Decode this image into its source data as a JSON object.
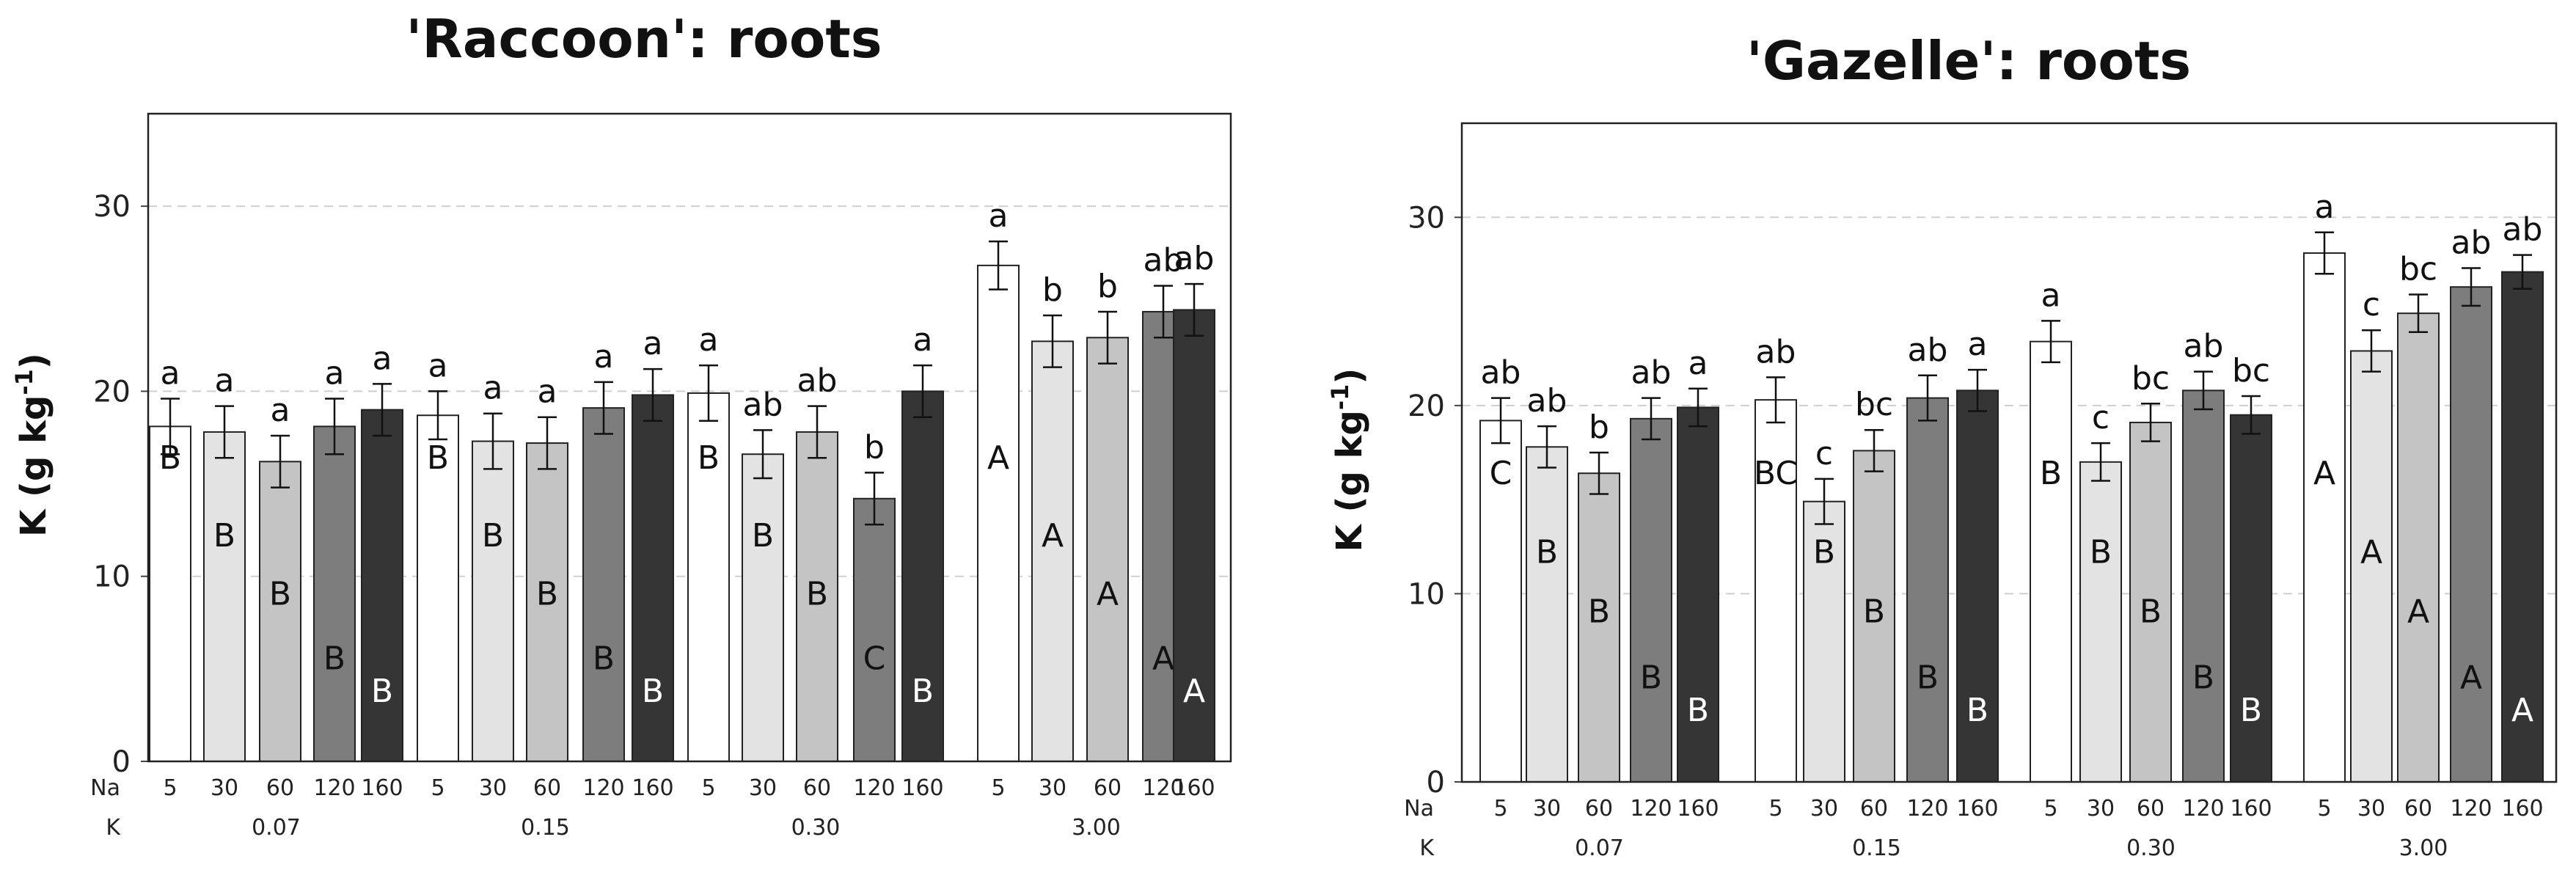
{
  "chart_data": [
    {
      "type": "bar",
      "title": "'Raccoon': roots",
      "ylabel": "K (g kg",
      "ylabel_sup": "-1",
      "ylabel_close": ")",
      "ylim": [
        0,
        35
      ],
      "yticks": [
        "0",
        "10",
        "20",
        "30"
      ],
      "row_labels": {
        "na": "Na",
        "k": "K"
      },
      "na_levels": [
        "5",
        "30",
        "60",
        "120",
        "160"
      ],
      "k_groups": [
        "0.07",
        "0.15",
        "0.30",
        "3.00"
      ],
      "bar_colors": [
        "#ffffff",
        "#e3e3e3",
        "#c4c4c4",
        "#7d7d7d",
        "#353535"
      ],
      "values": [
        [
          18.1,
          17.8,
          16.2,
          18.1,
          19.0
        ],
        [
          18.7,
          17.3,
          17.2,
          19.1,
          19.8
        ],
        [
          19.9,
          16.6,
          17.8,
          14.2,
          20.0
        ],
        [
          26.8,
          22.7,
          22.9,
          24.3,
          24.4
        ]
      ],
      "errors": [
        [
          1.5,
          1.4,
          1.4,
          1.5,
          1.4
        ],
        [
          1.3,
          1.5,
          1.4,
          1.4,
          1.4
        ],
        [
          1.5,
          1.3,
          1.4,
          1.4,
          1.4
        ],
        [
          1.3,
          1.4,
          1.4,
          1.4,
          1.4
        ]
      ],
      "lower_letters": [
        [
          "a",
          "a",
          "a",
          "a",
          "a"
        ],
        [
          "a",
          "a",
          "a",
          "a",
          "a"
        ],
        [
          "a",
          "ab",
          "ab",
          "b",
          "a"
        ],
        [
          "a",
          "b",
          "b",
          "ab",
          "ab"
        ]
      ],
      "upper_letters": [
        [
          "B",
          "B",
          "B",
          "B",
          "B"
        ],
        [
          "B",
          "B",
          "B",
          "B",
          "B"
        ],
        [
          "B",
          "B",
          "B",
          "C",
          "B"
        ],
        [
          "A",
          "A",
          "A",
          "A",
          "A"
        ]
      ]
    },
    {
      "type": "bar",
      "title": "'Gazelle': roots",
      "ylabel": "K (g kg",
      "ylabel_sup": "-1",
      "ylabel_close": ")",
      "ylim": [
        0,
        35
      ],
      "yticks": [
        "0",
        "10",
        "20",
        "30"
      ],
      "row_labels": {
        "na": "Na",
        "k": "K"
      },
      "na_levels": [
        "5",
        "30",
        "60",
        "120",
        "160"
      ],
      "k_groups": [
        "0.07",
        "0.15",
        "0.30",
        "3.00"
      ],
      "bar_colors": [
        "#ffffff",
        "#e3e3e3",
        "#c4c4c4",
        "#7d7d7d",
        "#353535"
      ],
      "values": [
        [
          19.2,
          17.8,
          16.4,
          19.3,
          19.9
        ],
        [
          20.3,
          14.9,
          17.6,
          20.4,
          20.8
        ],
        [
          23.4,
          17.0,
          19.1,
          20.8,
          19.5
        ],
        [
          28.1,
          22.9,
          24.9,
          26.3,
          27.1
        ]
      ],
      "errors": [
        [
          1.2,
          1.1,
          1.1,
          1.1,
          1.0
        ],
        [
          1.2,
          1.2,
          1.1,
          1.2,
          1.1
        ],
        [
          1.1,
          1.0,
          1.0,
          1.0,
          1.0
        ],
        [
          1.1,
          1.1,
          1.0,
          1.0,
          0.9
        ]
      ],
      "lower_letters": [
        [
          "ab",
          "ab",
          "b",
          "ab",
          "a"
        ],
        [
          "ab",
          "c",
          "bc",
          "ab",
          "a"
        ],
        [
          "a",
          "c",
          "bc",
          "ab",
          "bc"
        ],
        [
          "a",
          "c",
          "bc",
          "ab",
          "ab"
        ]
      ],
      "upper_letters": [
        [
          "C",
          "B",
          "B",
          "B",
          "B"
        ],
        [
          "BC",
          "B",
          "B",
          "B",
          "B"
        ],
        [
          "B",
          "B",
          "B",
          "B",
          "B"
        ],
        [
          "A",
          "A",
          "A",
          "A",
          "A"
        ]
      ]
    }
  ]
}
